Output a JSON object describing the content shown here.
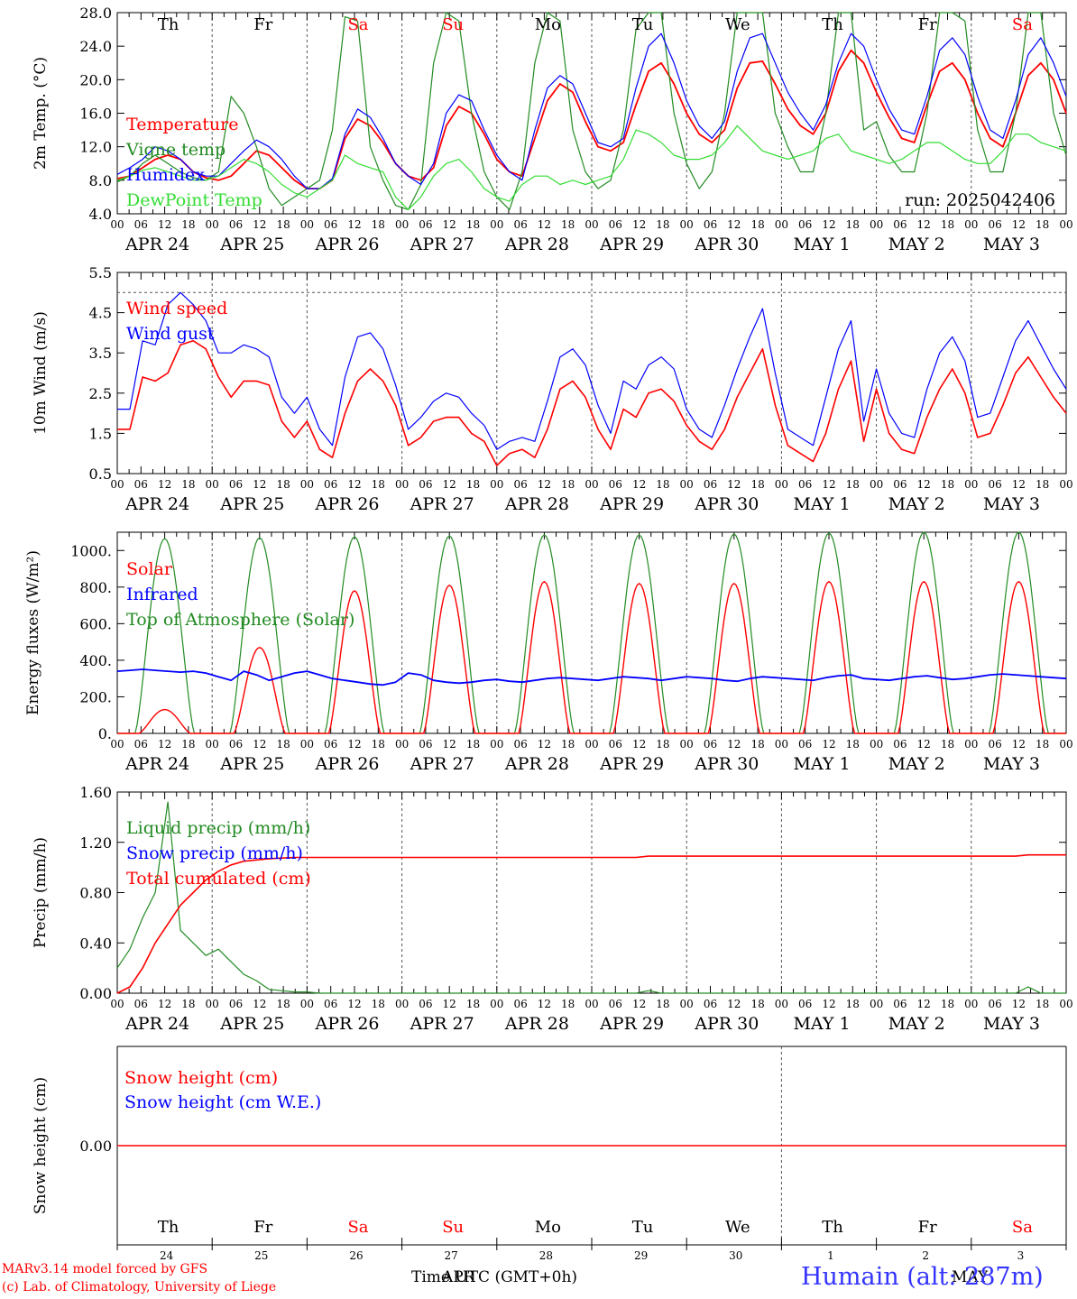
{
  "colors": {
    "red": "#ff0000",
    "green": "#228b22",
    "blue": "#0000ff",
    "lime": "#33dd33",
    "grid": "#555555"
  },
  "days": {
    "names": [
      "Th",
      "Fr",
      "Sa",
      "Su",
      "Mo",
      "Tu",
      "We",
      "Th",
      "Fr",
      "Sa"
    ],
    "weekend": [
      false,
      false,
      true,
      true,
      false,
      false,
      false,
      false,
      false,
      true
    ],
    "dates": [
      "APR 24",
      "APR 25",
      "APR 26",
      "APR 27",
      "APR 28",
      "APR 29",
      "APR 30",
      "MAY  1",
      "MAY  2",
      "MAY  3"
    ],
    "day_numbers": [
      "24",
      "25",
      "26",
      "27",
      "28",
      "29",
      "30",
      "1",
      "2",
      "3"
    ],
    "hour_ticks": [
      "00",
      "06",
      "12",
      "18"
    ],
    "end_tick": "00"
  },
  "run_label": "run: 2025042406",
  "footer": {
    "model": "MARv3.14 model forced by GFS",
    "copyright": "(c) Lab. of Climatology, University of Liege",
    "time_label": "Time UTC (GMT+0h)",
    "month_apr": "APR",
    "month_may": "MAY",
    "station": "Humain (alt: 287m)"
  },
  "chart_data": [
    {
      "type": "line",
      "ylabel": "2m Temp. (°C)",
      "ylim": [
        4,
        28
      ],
      "yticks": [
        "4.0",
        "8.0",
        "12.0",
        "16.0",
        "20.0",
        "24.0",
        "28.0"
      ],
      "x_unit": "hours since APR 24 00 UTC (3-hourly)",
      "series": [
        {
          "name": "Temperature",
          "color": "red",
          "values": [
            8.2,
            8.5,
            9.5,
            10.5,
            11.0,
            10.5,
            9.0,
            8.3,
            8.0,
            8.5,
            10.0,
            11.5,
            11.0,
            9.5,
            8.0,
            7.0,
            7.0,
            8.0,
            13.0,
            15.3,
            14.5,
            12.5,
            10.0,
            8.5,
            8.0,
            9.5,
            14.5,
            16.8,
            16.0,
            13.5,
            10.5,
            9.0,
            8.5,
            13.0,
            17.5,
            19.5,
            18.5,
            15.0,
            12.0,
            11.5,
            12.5,
            17.0,
            21.0,
            22.0,
            19.5,
            16.0,
            13.5,
            12.5,
            14.0,
            19.0,
            22.0,
            22.2,
            19.5,
            16.5,
            14.5,
            13.5,
            16.0,
            21.0,
            23.5,
            22.0,
            18.5,
            15.5,
            13.0,
            12.5,
            17.0,
            21.0,
            22.0,
            20.0,
            16.0,
            13.0,
            12.0,
            16.0,
            20.5,
            22.0,
            20.0,
            16.0
          ]
        },
        {
          "name": "Vigne temp",
          "color": "green",
          "values": [
            7.8,
            8.5,
            10.0,
            11.0,
            10.0,
            9.0,
            8.3,
            8.0,
            9.0,
            18.0,
            16.0,
            12.0,
            7.0,
            5.0,
            6.0,
            7.0,
            8.0,
            14.0,
            27.5,
            27.0,
            12.0,
            8.0,
            5.0,
            4.5,
            7.5,
            22.0,
            29.0,
            27.0,
            16.0,
            9.0,
            6.0,
            4.5,
            9.0,
            22.0,
            29.0,
            27.0,
            14.0,
            9.0,
            7.0,
            8.0,
            14.0,
            26.0,
            30.0,
            28.0,
            16.0,
            10.0,
            7.0,
            9.0,
            16.0,
            28.0,
            30.0,
            28.0,
            16.0,
            12.0,
            9.0,
            9.0,
            16.0,
            29.0,
            30.0,
            14.0,
            15.0,
            11.0,
            9.0,
            9.0,
            16.0,
            28.0,
            30.0,
            27.0,
            14.0,
            9.0,
            9.0,
            16.0,
            28.0,
            30.0,
            16.0,
            11.0
          ]
        },
        {
          "name": "Humidex",
          "color": "blue",
          "values": [
            8.7,
            9.5,
            10.5,
            12.0,
            11.5,
            10.5,
            9.0,
            8.5,
            8.5,
            10.0,
            11.5,
            12.8,
            12.0,
            10.5,
            8.5,
            7.0,
            7.0,
            8.2,
            13.5,
            16.5,
            15.5,
            13.0,
            10.0,
            8.5,
            7.5,
            10.0,
            16.0,
            18.2,
            17.5,
            14.0,
            11.0,
            9.0,
            8.0,
            14.0,
            19.0,
            20.5,
            19.5,
            16.0,
            12.5,
            12.0,
            13.0,
            19.0,
            24.0,
            25.5,
            22.0,
            17.5,
            14.5,
            13.0,
            15.0,
            21.0,
            25.0,
            25.5,
            22.0,
            18.5,
            16.0,
            14.0,
            17.0,
            22.0,
            25.5,
            24.0,
            20.0,
            16.5,
            14.0,
            13.5,
            18.0,
            23.5,
            25.0,
            23.0,
            18.0,
            14.0,
            13.0,
            17.5,
            23.0,
            25.0,
            22.0,
            18.0
          ]
        },
        {
          "name": "DewPoint Temp",
          "color": "lime",
          "values": [
            8.0,
            8.5,
            9.2,
            9.5,
            9.0,
            8.5,
            8.0,
            8.0,
            8.5,
            9.5,
            10.5,
            10.0,
            9.0,
            7.5,
            6.5,
            6.0,
            7.0,
            8.0,
            11.0,
            10.0,
            9.5,
            9.0,
            6.0,
            4.5,
            6.0,
            8.5,
            10.0,
            10.5,
            9.0,
            7.0,
            6.0,
            5.5,
            7.5,
            8.5,
            8.5,
            7.5,
            8.0,
            7.5,
            8.0,
            8.5,
            10.5,
            14.0,
            13.5,
            12.5,
            11.0,
            10.5,
            10.5,
            11.0,
            12.5,
            14.5,
            13.0,
            11.5,
            11.0,
            10.5,
            11.0,
            11.5,
            13.0,
            13.5,
            11.5,
            11.0,
            10.5,
            10.0,
            10.5,
            11.5,
            12.5,
            12.5,
            11.5,
            10.5,
            10.0,
            10.0,
            11.5,
            13.5,
            13.5,
            12.5,
            12.0,
            11.5
          ]
        }
      ]
    },
    {
      "type": "line",
      "ylabel": "10m Wind (m/s)",
      "ylim": [
        0.5,
        5.5
      ],
      "yticks": [
        "0.5",
        "1.5",
        "2.5",
        "3.5",
        "4.5",
        "5.5"
      ],
      "threshold_line": 5.0,
      "x_unit": "hours since APR 24 00 UTC (3-hourly)",
      "series": [
        {
          "name": "Wind speed",
          "color": "red",
          "values": [
            1.6,
            1.6,
            2.9,
            2.8,
            3.0,
            3.7,
            3.8,
            3.6,
            2.9,
            2.4,
            2.8,
            2.8,
            2.7,
            1.8,
            1.4,
            1.8,
            1.1,
            0.9,
            2.0,
            2.8,
            3.1,
            2.8,
            2.2,
            1.2,
            1.4,
            1.8,
            1.9,
            1.9,
            1.5,
            1.3,
            0.7,
            1.0,
            1.1,
            0.9,
            1.6,
            2.6,
            2.8,
            2.4,
            1.6,
            1.1,
            2.1,
            1.9,
            2.5,
            2.6,
            2.3,
            1.7,
            1.3,
            1.1,
            1.6,
            2.4,
            3.0,
            3.6,
            2.2,
            1.2,
            1.0,
            0.8,
            1.5,
            2.6,
            3.3,
            1.3,
            2.6,
            1.5,
            1.1,
            1.0,
            1.9,
            2.6,
            3.1,
            2.5,
            1.4,
            1.5,
            2.2,
            3.0,
            3.4,
            2.9,
            2.4,
            2.0
          ]
        },
        {
          "name": "Wind gust",
          "color": "blue",
          "values": [
            2.1,
            2.1,
            3.8,
            3.7,
            4.7,
            5.0,
            4.7,
            4.3,
            3.5,
            3.5,
            3.7,
            3.6,
            3.4,
            2.4,
            2.0,
            2.4,
            1.6,
            1.2,
            2.9,
            3.9,
            4.0,
            3.6,
            2.7,
            1.6,
            1.9,
            2.3,
            2.5,
            2.4,
            2.0,
            1.7,
            1.1,
            1.3,
            1.4,
            1.3,
            2.3,
            3.4,
            3.6,
            3.2,
            2.2,
            1.5,
            2.8,
            2.6,
            3.2,
            3.4,
            3.1,
            2.1,
            1.6,
            1.4,
            2.2,
            3.1,
            3.9,
            4.6,
            3.0,
            1.6,
            1.4,
            1.2,
            2.4,
            3.6,
            4.3,
            1.8,
            3.1,
            2.0,
            1.5,
            1.4,
            2.6,
            3.5,
            3.9,
            3.3,
            1.9,
            2.0,
            2.9,
            3.8,
            4.3,
            3.7,
            3.1,
            2.6
          ]
        }
      ]
    },
    {
      "type": "line",
      "ylabel": "Energy fluxes (W/m²)",
      "ylim": [
        0,
        1100
      ],
      "yticks": [
        "0.",
        "200.",
        "400.",
        "600.",
        "800.",
        "1000."
      ],
      "x_unit": "hours since APR 24 00 UTC (3-hourly)",
      "series": [
        {
          "name": "Solar",
          "color": "red",
          "peak_values": [
            130,
            470,
            780,
            810,
            830,
            820,
            820,
            830,
            830,
            830
          ]
        },
        {
          "name": "Infrared",
          "color": "blue",
          "values": [
            340,
            345,
            350,
            345,
            340,
            335,
            340,
            330,
            310,
            290,
            340,
            320,
            290,
            310,
            330,
            340,
            320,
            300,
            290,
            280,
            270,
            265,
            280,
            330,
            320,
            290,
            280,
            275,
            280,
            290,
            295,
            285,
            280,
            290,
            300,
            305,
            300,
            295,
            290,
            300,
            310,
            305,
            300,
            290,
            300,
            310,
            305,
            300,
            290,
            285,
            300,
            310,
            305,
            300,
            295,
            290,
            305,
            315,
            320,
            300,
            295,
            290,
            300,
            310,
            315,
            305,
            295,
            300,
            310,
            320,
            325,
            320,
            315,
            310,
            305,
            300
          ]
        },
        {
          "name": "Top of Atmosphere (Solar)",
          "color": "green",
          "peak_values": [
            1065,
            1070,
            1075,
            1080,
            1085,
            1085,
            1090,
            1095,
            1100,
            1100
          ]
        }
      ]
    },
    {
      "type": "line",
      "ylabel": "Precip (mm/h)",
      "ylim": [
        0,
        1.6
      ],
      "yticks": [
        "0.00",
        "0.40",
        "0.80",
        "1.20",
        "1.60"
      ],
      "x_unit": "hours since APR 24 00 UTC (3-hourly)",
      "series": [
        {
          "name": "Liquid precip (mm/h)",
          "color": "green",
          "values": [
            0.2,
            0.35,
            0.6,
            0.8,
            1.52,
            0.5,
            0.4,
            0.3,
            0.35,
            0.25,
            0.15,
            0.1,
            0.03,
            0.02,
            0.01,
            0.01,
            0,
            0,
            0,
            0,
            0,
            0,
            0,
            0,
            0,
            0,
            0,
            0,
            0,
            0,
            0,
            0,
            0,
            0,
            0,
            0,
            0,
            0,
            0,
            0,
            0,
            0,
            0.02,
            0,
            0,
            0,
            0,
            0,
            0,
            0,
            0,
            0,
            0,
            0,
            0,
            0,
            0,
            0,
            0,
            0,
            0,
            0,
            0,
            0,
            0,
            0,
            0,
            0,
            0,
            0,
            0,
            0,
            0.05,
            0,
            0,
            0
          ]
        },
        {
          "name": "Snow precip (mm/h)",
          "color": "blue",
          "values": []
        },
        {
          "name": "Total cumulated (cm)",
          "color": "red",
          "values": [
            0,
            0.05,
            0.2,
            0.4,
            0.55,
            0.7,
            0.8,
            0.9,
            0.97,
            1.02,
            1.05,
            1.06,
            1.07,
            1.075,
            1.08,
            1.08,
            1.08,
            1.08,
            1.08,
            1.08,
            1.08,
            1.08,
            1.08,
            1.08,
            1.08,
            1.08,
            1.08,
            1.08,
            1.08,
            1.08,
            1.08,
            1.08,
            1.08,
            1.08,
            1.08,
            1.08,
            1.08,
            1.08,
            1.08,
            1.08,
            1.08,
            1.08,
            1.09,
            1.09,
            1.09,
            1.09,
            1.09,
            1.09,
            1.09,
            1.09,
            1.09,
            1.09,
            1.09,
            1.09,
            1.09,
            1.09,
            1.09,
            1.09,
            1.09,
            1.09,
            1.09,
            1.09,
            1.09,
            1.09,
            1.09,
            1.09,
            1.09,
            1.09,
            1.09,
            1.09,
            1.09,
            1.09,
            1.1,
            1.1,
            1.1,
            1.1
          ]
        }
      ]
    },
    {
      "type": "line",
      "ylabel": "Snow height (cm)",
      "yticks": [
        "0.00"
      ],
      "series": [
        {
          "name": "Snow height (cm)",
          "color": "red",
          "values": [
            0,
            0
          ]
        },
        {
          "name": "Snow height (cm W.E.)",
          "color": "blue",
          "values": []
        }
      ]
    }
  ]
}
